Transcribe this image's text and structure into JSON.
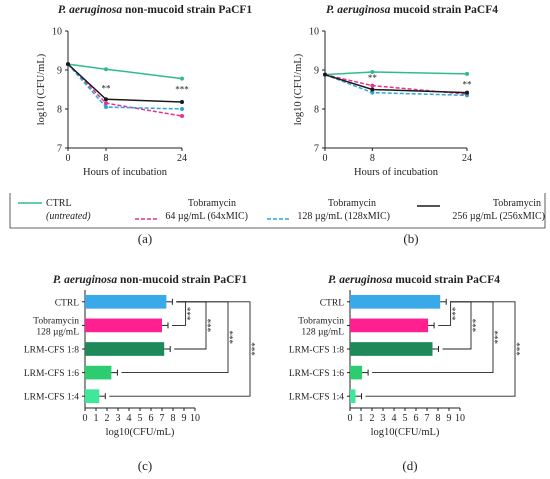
{
  "panels": {
    "a": "(a)",
    "b": "(b)",
    "c": "(c)",
    "d": "(d)"
  },
  "legend": {
    "ctrl_line1": "CTRL",
    "ctrl_line2": "(untreated)",
    "tob64_line1": "Tobramycin",
    "tob64_line2": "64 µg/mL (64xMIC)",
    "tob128_line1": "Tobramycin",
    "tob128_line2": "128 µg/mL (128xMIC)",
    "tob256_line1": "Tobramycin",
    "tob256_line2": "256 µg/mL (256xMIC)"
  },
  "colors": {
    "ctrl_line": "#2ebd8a",
    "tob64": "#e8318c",
    "tob128": "#2aa6dc",
    "tob256": "#1a1a1a",
    "bar_ctrl": "#3aa9ea",
    "bar_tob": "#ff1f8e",
    "bar_lrm18": "#1e8a5a",
    "bar_lrm16": "#2ecc71",
    "bar_lrm14": "#3ee89a"
  },
  "chart_data": [
    {
      "id": "a",
      "type": "line",
      "title_species": "P. aeruginosa",
      "title_rest": " non-mucoid strain PaCF1",
      "xlabel": "Hours of incubation",
      "ylabel": "log10 (CFU/mL)",
      "x": [
        0,
        8,
        24
      ],
      "xticks": [
        "0",
        "8",
        "24"
      ],
      "ylim": [
        7,
        10
      ],
      "yticks": [
        "7",
        "8",
        "9",
        "10"
      ],
      "series": [
        {
          "name": "CTRL (untreated)",
          "key": "ctrl",
          "values": [
            9.15,
            9.02,
            8.78
          ]
        },
        {
          "name": "Tobramycin 64 µg/mL (64xMIC)",
          "key": "tob64",
          "values": [
            9.15,
            8.15,
            7.82
          ]
        },
        {
          "name": "Tobramycin 128 µg/mL (128xMIC)",
          "key": "tob128",
          "values": [
            9.15,
            8.05,
            8.0
          ]
        },
        {
          "name": "Tobramycin 256 µg/mL (256xMIC)",
          "key": "tob256",
          "values": [
            9.15,
            8.25,
            8.18
          ]
        }
      ],
      "annotations": [
        {
          "x": 8,
          "text": "**",
          "y": 8.45
        },
        {
          "x": 24,
          "text": "***",
          "y": 8.42
        }
      ]
    },
    {
      "id": "b",
      "type": "line",
      "title_species": "P. aeruginosa",
      "title_rest": " mucoid strain PaCF4",
      "xlabel": "Hours of incubation",
      "ylabel": "log10 (CFU/mL)",
      "x": [
        0,
        8,
        24
      ],
      "xticks": [
        "0",
        "8",
        "24"
      ],
      "ylim": [
        7,
        10
      ],
      "yticks": [
        "7",
        "8",
        "9",
        "10"
      ],
      "series": [
        {
          "name": "CTRL (untreated)",
          "key": "ctrl",
          "values": [
            8.88,
            8.95,
            8.9
          ]
        },
        {
          "name": "Tobramycin 64 µg/mL (64xMIC)",
          "key": "tob64",
          "values": [
            8.88,
            8.6,
            8.38
          ]
        },
        {
          "name": "Tobramycin 128 µg/mL (128xMIC)",
          "key": "tob128",
          "values": [
            8.88,
            8.42,
            8.35
          ]
        },
        {
          "name": "Tobramycin 256 µg/mL (256xMIC)",
          "key": "tob256",
          "values": [
            8.88,
            8.5,
            8.42
          ]
        }
      ],
      "annotations": [
        {
          "x": 8,
          "text": "**",
          "y": 8.72
        },
        {
          "x": 24,
          "text": "**",
          "y": 8.55
        }
      ]
    },
    {
      "id": "c",
      "type": "bar",
      "orientation": "horizontal",
      "title_species": "P. aeruginosa",
      "title_rest": " non-mucoid strain PaCF1",
      "xlabel": "log10(CFU/mL)",
      "xlim": [
        0,
        10
      ],
      "xticks": [
        "0",
        "1",
        "2",
        "3",
        "4",
        "5",
        "6",
        "7",
        "8",
        "9",
        "10"
      ],
      "categories": [
        "CTRL",
        "Tobramycin 128 µg/mL",
        "LRM-CFS 1:8",
        "LRM-CFS 1:6",
        "LRM-CFS 1:4"
      ],
      "category_lines": [
        [
          "CTRL"
        ],
        [
          "Tobramycin",
          "128 µg/mL"
        ],
        [
          "LRM-CFS 1:8"
        ],
        [
          "LRM-CFS 1:6"
        ],
        [
          "LRM-CFS 1:4"
        ]
      ],
      "values": [
        7.4,
        7.0,
        7.2,
        2.4,
        1.3
      ],
      "significance": [
        "***",
        "***",
        "***",
        "***"
      ]
    },
    {
      "id": "d",
      "type": "bar",
      "orientation": "horizontal",
      "title_species": "P. aeruginosa",
      "title_rest": " mucoid strain PaCF4",
      "xlabel": "log10(CFU/mL)",
      "xlim": [
        0,
        10
      ],
      "xticks": [
        "0",
        "1",
        "2",
        "3",
        "4",
        "5",
        "6",
        "7",
        "8",
        "9",
        "10"
      ],
      "categories": [
        "CTRL",
        "Tobramycin 128 µg/mL",
        "LRM-CFS 1:8",
        "LRM-CFS 1:6",
        "LRM-CFS 1:4"
      ],
      "category_lines": [
        [
          "CTRL"
        ],
        [
          "Tobramycin",
          "128 µg/mL"
        ],
        [
          "LRM-CFS 1:8"
        ],
        [
          "LRM-CFS 1:6"
        ],
        [
          "LRM-CFS 1:4"
        ]
      ],
      "values": [
        8.2,
        7.1,
        7.5,
        1.1,
        0.5
      ],
      "significance": [
        "***",
        "***",
        "***",
        "***"
      ]
    }
  ]
}
